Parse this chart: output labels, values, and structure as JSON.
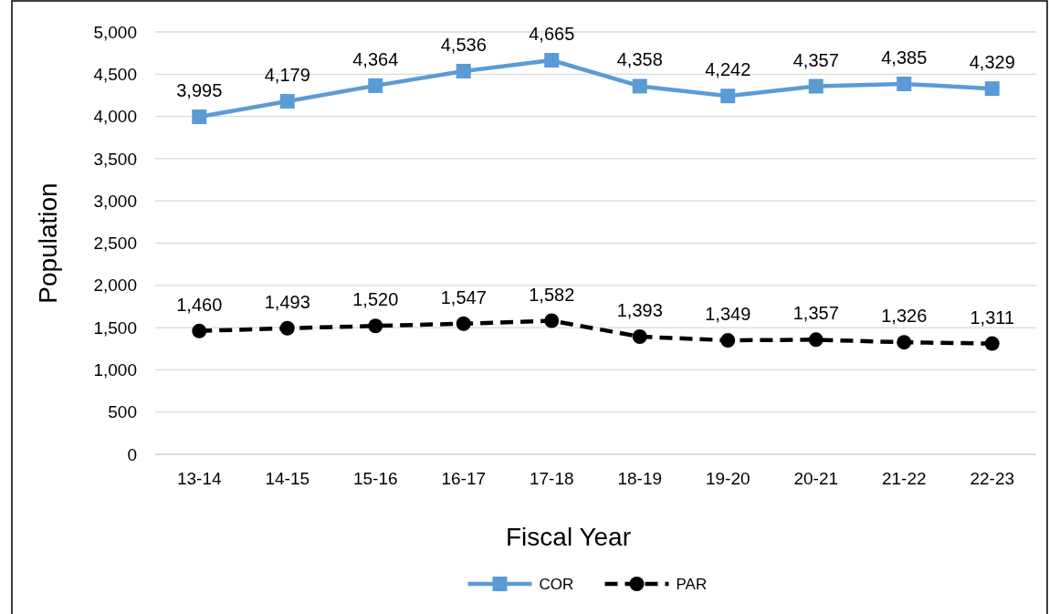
{
  "chart_data": {
    "type": "line",
    "xlabel": "Fiscal Year",
    "ylabel": "Population",
    "categories": [
      "13-14",
      "14-15",
      "15-16",
      "16-17",
      "17-18",
      "18-19",
      "19-20",
      "20-21",
      "21-22",
      "22-23"
    ],
    "series": [
      {
        "name": "COR",
        "color": "#5b9bd5",
        "marker": "square",
        "line_style": "solid",
        "values": [
          3995,
          4179,
          4364,
          4536,
          4665,
          4358,
          4242,
          4357,
          4385,
          4329
        ],
        "value_labels": [
          "3,995",
          "4,179",
          "4,364",
          "4,536",
          "4,665",
          "4,358",
          "4,242",
          "4,357",
          "4,385",
          "4,329"
        ]
      },
      {
        "name": "PAR",
        "color": "#000000",
        "marker": "circle",
        "line_style": "dashed",
        "values": [
          1460,
          1493,
          1520,
          1547,
          1582,
          1393,
          1349,
          1357,
          1326,
          1311
        ],
        "value_labels": [
          "1,460",
          "1,493",
          "1,520",
          "1,547",
          "1,582",
          "1,393",
          "1,349",
          "1,357",
          "1,326",
          "1,311"
        ]
      }
    ],
    "ylim": [
      0,
      5000
    ],
    "yticks": [
      0,
      500,
      {
        "value": 1000,
        "label": "1,000"
      },
      {
        "value": 1500,
        "label": "1,500"
      },
      {
        "value": 2000,
        "label": "2,000"
      },
      {
        "value": 2500,
        "label": "2,500"
      },
      {
        "value": 3000,
        "label": "3,000"
      },
      {
        "value": 3500,
        "label": "3,500"
      },
      {
        "value": 4000,
        "label": "4,000"
      },
      {
        "value": 4500,
        "label": "4,500"
      },
      {
        "value": 5000,
        "label": "5,000"
      }
    ],
    "grid": "y",
    "legend": "bottom"
  }
}
